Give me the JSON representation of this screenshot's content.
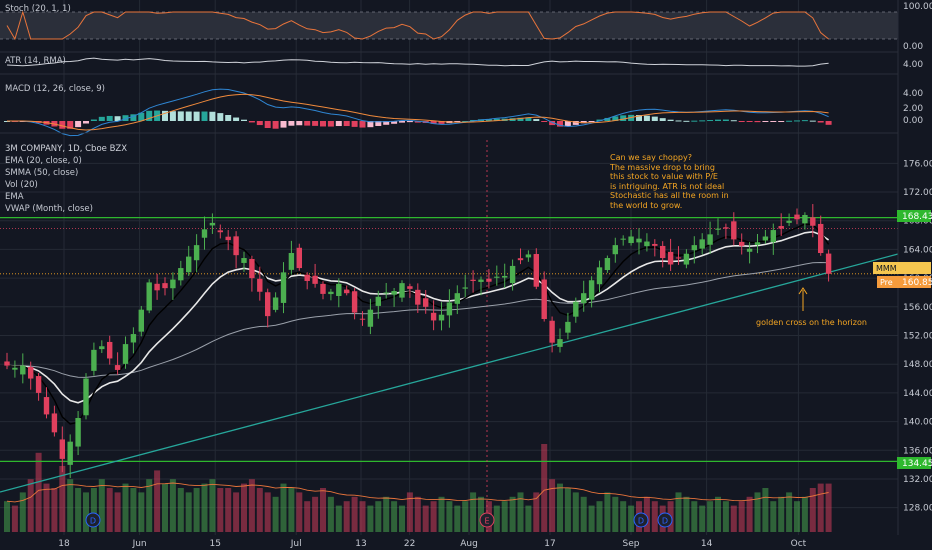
{
  "panes": {
    "stoch": {
      "label": "Stoch (20, 1, 1)",
      "ticks": [
        "100.00",
        "0.00"
      ]
    },
    "atr": {
      "label": "ATR (14, RMA)",
      "ticks": [
        "4.00"
      ]
    },
    "macd": {
      "label": "MACD (12, 26, close, 9)",
      "ticks": [
        "4.00",
        "2.00",
        "0.00"
      ]
    },
    "main": {
      "symbol": "3M COMPANY, 1D, Cboe BZX",
      "studies": [
        "EMA (20, close, 0)",
        "SMMA (50, close)",
        "Vol (20)",
        "EMA",
        "VWAP (Month, close)"
      ]
    }
  },
  "badges": {
    "symbol_tag": "MMM",
    "resistance": "168.43",
    "pre_label": "Pre",
    "last_price": "160.85",
    "support": "134.45"
  },
  "annotations": {
    "thesis": "Can we say choppy?\nThe massive drop to bring\nthis stock to value with P/E\nis intriguing. ATR is not ideal\nStochastic has all the room in\nthe world to grow.",
    "arrow_note": "golden cross on the horizon"
  },
  "markers": [
    "D",
    "E",
    "D",
    "D"
  ],
  "colors": {
    "bg": "#131722",
    "up": "#4caf50",
    "down": "#e0405e",
    "level": "#2eb82e",
    "trend": "#26a69a",
    "annotation": "#f5a623"
  },
  "chart_data": {
    "type": "candlestick",
    "ylim": [
      126,
      178
    ],
    "y_ticks": [
      128,
      132,
      136,
      140,
      144,
      148,
      152,
      156,
      160,
      164,
      168,
      172,
      176
    ],
    "x_tick_labels": [
      "18",
      "Jun",
      "15",
      "Jul",
      "13",
      "22",
      "Aug",
      "17",
      "Sep",
      "14",
      "Oct"
    ],
    "x_tick_days": [
      18,
      32,
      46,
      61,
      73,
      82,
      93,
      108,
      123,
      137,
      154
    ],
    "horizontal_levels": [
      168.43,
      134.45
    ],
    "close_series": [
      147.8,
      147.5,
      147.8,
      146.0,
      144.0,
      141.0,
      138.5,
      134.8,
      137.2,
      140.5,
      146.0,
      150.0,
      150.5,
      148.8,
      147.2,
      150.8,
      152.2,
      155.6,
      159.4,
      158.3,
      158.6,
      159.8,
      161.4,
      163.0,
      164.6,
      166.8,
      167.7,
      166.4,
      165.3,
      163.2,
      162.8,
      160.0,
      158.1,
      154.7,
      157.3,
      160.8,
      163.5,
      161.4,
      159.6,
      159.2,
      157.8,
      158.1,
      159.2,
      157.9,
      155.2,
      154.3,
      155.6,
      157.4,
      158.0,
      158.2,
      159.3,
      158.5,
      156.3,
      156.0,
      154.1,
      154.9,
      156.6,
      157.9,
      158.7,
      159.6,
      159.8,
      159.5,
      160.2,
      160.3,
      161.7,
      162.5,
      163.3,
      158.8,
      154.3,
      151.0,
      151.5,
      153.9,
      156.7,
      157.9,
      159.7,
      161.5,
      162.8,
      164.6,
      165.5,
      165.8,
      165.5,
      165.1,
      164.5,
      162.8,
      161.9,
      162.8,
      163.4,
      164.6,
      165.4,
      166.1,
      166.9,
      166.9,
      165.4,
      164.5,
      164.1,
      165.0,
      165.8,
      166.7,
      166.9,
      168.0,
      168.2,
      168.8,
      167.3,
      163.5,
      160.6
    ],
    "volume_relative": [
      0.35,
      0.3,
      0.45,
      0.6,
      0.9,
      0.55,
      0.5,
      0.75,
      0.6,
      0.5,
      0.45,
      0.5,
      0.6,
      0.5,
      0.45,
      0.55,
      0.5,
      0.45,
      0.6,
      0.7,
      0.55,
      0.6,
      0.5,
      0.45,
      0.5,
      0.55,
      0.6,
      0.5,
      0.5,
      0.45,
      0.55,
      0.6,
      0.5,
      0.45,
      0.4,
      0.55,
      0.5,
      0.45,
      0.35,
      0.4,
      0.5,
      0.4,
      0.3,
      0.35,
      0.4,
      0.35,
      0.3,
      0.35,
      0.4,
      0.35,
      0.3,
      0.45,
      0.4,
      0.3,
      0.35,
      0.4,
      0.35,
      0.3,
      0.35,
      0.45,
      0.4,
      0.35,
      0.3,
      0.35,
      0.4,
      0.45,
      0.3,
      0.45,
      1.0,
      0.6,
      0.55,
      0.5,
      0.45,
      0.4,
      0.3,
      0.35,
      0.45,
      0.4,
      0.35,
      0.3,
      0.35,
      0.4,
      0.35,
      0.3,
      0.35,
      0.45,
      0.4,
      0.35,
      0.3,
      0.35,
      0.4,
      0.35,
      0.3,
      0.35,
      0.4,
      0.45,
      0.5,
      0.35,
      0.4,
      0.45,
      0.35,
      0.4,
      0.5,
      0.55,
      0.55
    ]
  }
}
